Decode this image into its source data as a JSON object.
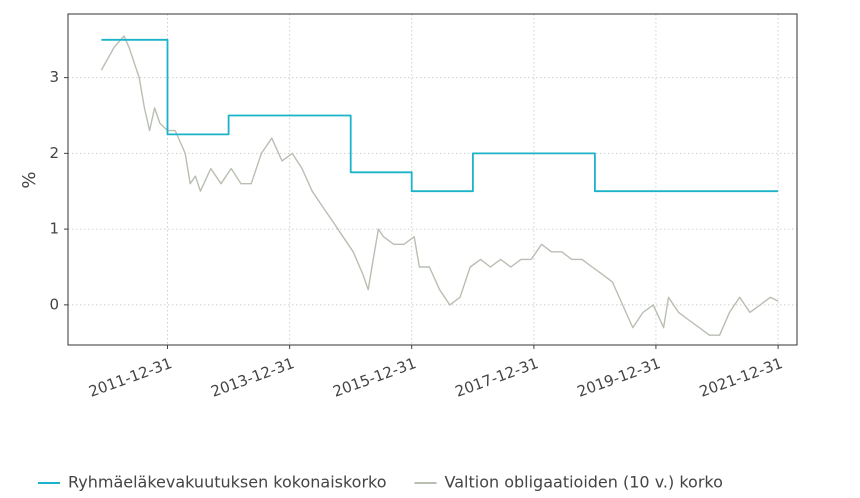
{
  "chart_data": {
    "type": "line",
    "y_label": "%",
    "xlim": [
      "2010-05-15",
      "2022-04-23"
    ],
    "xticks": [
      "2011-12-31",
      "2013-12-31",
      "2015-12-31",
      "2017-12-31",
      "2019-12-31",
      "2021-12-31"
    ],
    "ylim": [
      -0.53,
      3.84
    ],
    "yticks": [
      0,
      1,
      2,
      3
    ],
    "grid": true,
    "legend": "bottom",
    "series": [
      {
        "name": "Ryhmäeläkevakuutuksen kokonaiskorko",
        "color": "#1ab3c9",
        "x": [
          "2010-12-01",
          "2011-12-31",
          "2011-12-31",
          "2012-12-31",
          "2012-12-31",
          "2014-12-31",
          "2014-12-31",
          "2015-12-31",
          "2015-12-31",
          "2016-12-31",
          "2016-12-31",
          "2018-12-31",
          "2018-12-31",
          "2021-12-31"
        ],
        "values": [
          3.5,
          3.5,
          2.25,
          2.25,
          2.5,
          2.5,
          1.75,
          1.75,
          1.5,
          1.5,
          2.0,
          2.0,
          1.5,
          1.5
        ]
      },
      {
        "name": "Valtion obligaatioiden (10 v.) korko",
        "color": "#b8bfb2",
        "x": [
          "2010-12-01",
          "2011-02-15",
          "2011-04-15",
          "2011-05-15",
          "2011-07-15",
          "2011-08-15",
          "2011-09-15",
          "2011-10-15",
          "2011-11-15",
          "2011-12-31",
          "2012-02-15",
          "2012-04-15",
          "2012-05-15",
          "2012-06-15",
          "2012-07-15",
          "2012-09-15",
          "2012-11-15",
          "2013-01-15",
          "2013-03-15",
          "2013-05-15",
          "2013-07-15",
          "2013-09-15",
          "2013-11-15",
          "2014-01-15",
          "2014-03-15",
          "2014-05-15",
          "2014-07-15",
          "2014-09-15",
          "2014-11-15",
          "2015-01-15",
          "2015-03-15",
          "2015-04-15",
          "2015-05-15",
          "2015-06-15",
          "2015-07-15",
          "2015-09-15",
          "2015-11-15",
          "2016-01-15",
          "2016-02-15",
          "2016-04-15",
          "2016-06-15",
          "2016-08-15",
          "2016-10-15",
          "2016-12-15",
          "2017-02-15",
          "2017-04-15",
          "2017-06-15",
          "2017-08-15",
          "2017-10-15",
          "2017-12-15",
          "2018-02-15",
          "2018-04-15",
          "2018-06-15",
          "2018-08-15",
          "2018-10-15",
          "2018-12-15",
          "2019-02-15",
          "2019-04-15",
          "2019-06-15",
          "2019-08-15",
          "2019-10-15",
          "2019-12-15",
          "2020-02-15",
          "2020-03-15",
          "2020-05-15",
          "2020-07-15",
          "2020-09-15",
          "2020-11-15",
          "2021-01-15",
          "2021-03-15",
          "2021-05-15",
          "2021-07-15",
          "2021-09-15",
          "2021-11-15",
          "2021-12-31"
        ],
        "values": [
          3.1,
          3.4,
          3.55,
          3.4,
          3.0,
          2.6,
          2.3,
          2.6,
          2.4,
          2.3,
          2.3,
          2.0,
          1.6,
          1.7,
          1.5,
          1.8,
          1.6,
          1.8,
          1.6,
          1.6,
          2.0,
          2.2,
          1.9,
          2.0,
          1.8,
          1.5,
          1.3,
          1.1,
          0.9,
          0.7,
          0.4,
          0.2,
          0.6,
          1.0,
          0.9,
          0.8,
          0.8,
          0.9,
          0.5,
          0.5,
          0.2,
          0.0,
          0.1,
          0.5,
          0.6,
          0.5,
          0.6,
          0.5,
          0.6,
          0.6,
          0.8,
          0.7,
          0.7,
          0.6,
          0.6,
          0.5,
          0.4,
          0.3,
          0.0,
          -0.3,
          -0.1,
          0.0,
          -0.3,
          0.1,
          -0.1,
          -0.2,
          -0.3,
          -0.4,
          -0.4,
          -0.1,
          0.1,
          -0.1,
          0.0,
          0.1,
          0.05
        ]
      }
    ]
  }
}
